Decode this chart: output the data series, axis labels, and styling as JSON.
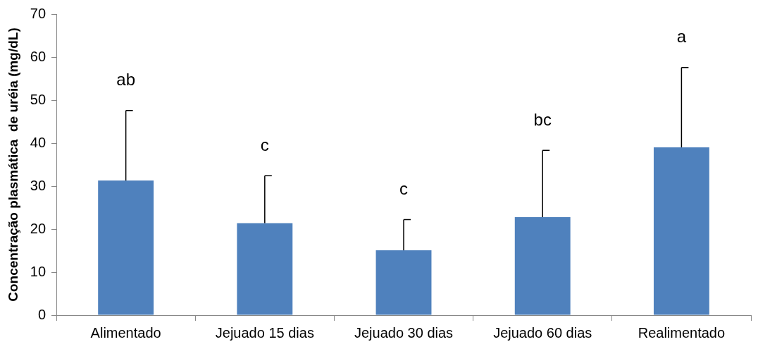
{
  "chart_data": {
    "type": "bar",
    "ylabel": "Concentração plasmática  de uréia (mg/dL)",
    "categories": [
      "Alimentado",
      "Jejuado 15 dias",
      "Jejuado 30 dias",
      "Jejuado 60 dias",
      "Realimentado"
    ],
    "values": [
      31.3,
      21.4,
      15.1,
      22.8,
      39.0
    ],
    "errors": [
      [
        31.3,
        47.6
      ],
      [
        21.4,
        32.4
      ],
      [
        15.1,
        22.2
      ],
      [
        22.8,
        38.3
      ],
      [
        39.0,
        57.6
      ]
    ],
    "color": "#4f81bd",
    "ylim": [
      0,
      70
    ],
    "yticks": [
      0,
      10,
      20,
      30,
      40,
      50,
      60,
      70
    ],
    "grid": false,
    "legend": false,
    "annotations": [
      "ab",
      "c",
      "c",
      "bc",
      "a"
    ]
  }
}
